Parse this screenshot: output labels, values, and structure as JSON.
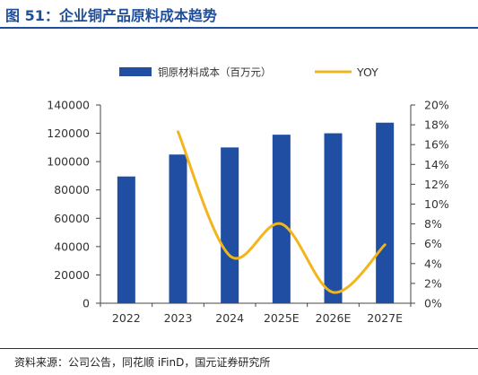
{
  "figure": {
    "title": "图 51：企业铜产品原料成本趋势",
    "source": "资料来源：公司公告，同花顺 iFinD，国元证券研究所"
  },
  "chart_data": {
    "type": "bar+line",
    "categories": [
      "2022",
      "2023",
      "2024",
      "2025E",
      "2026E",
      "2027E"
    ],
    "series": [
      {
        "name": "铜原材料成本（百万元）",
        "type": "bar",
        "axis": "left",
        "color": "#1f4ea3",
        "values": [
          89500,
          105000,
          110000,
          119000,
          120000,
          127500
        ]
      },
      {
        "name": "YOY",
        "type": "line",
        "axis": "right",
        "color": "#f2b51c",
        "values": [
          null,
          17.3,
          4.8,
          8.0,
          1.1,
          5.9
        ]
      }
    ],
    "left_axis": {
      "ticks": [
        "0",
        "20000",
        "40000",
        "60000",
        "80000",
        "100000",
        "120000",
        "140000"
      ],
      "ylim": [
        0,
        140000
      ]
    },
    "right_axis": {
      "ticks": [
        "0%",
        "2%",
        "4%",
        "6%",
        "8%",
        "10%",
        "12%",
        "14%",
        "16%",
        "18%",
        "20%"
      ],
      "ylim": [
        0,
        20
      ]
    },
    "legend_position": "top",
    "grid": false
  }
}
